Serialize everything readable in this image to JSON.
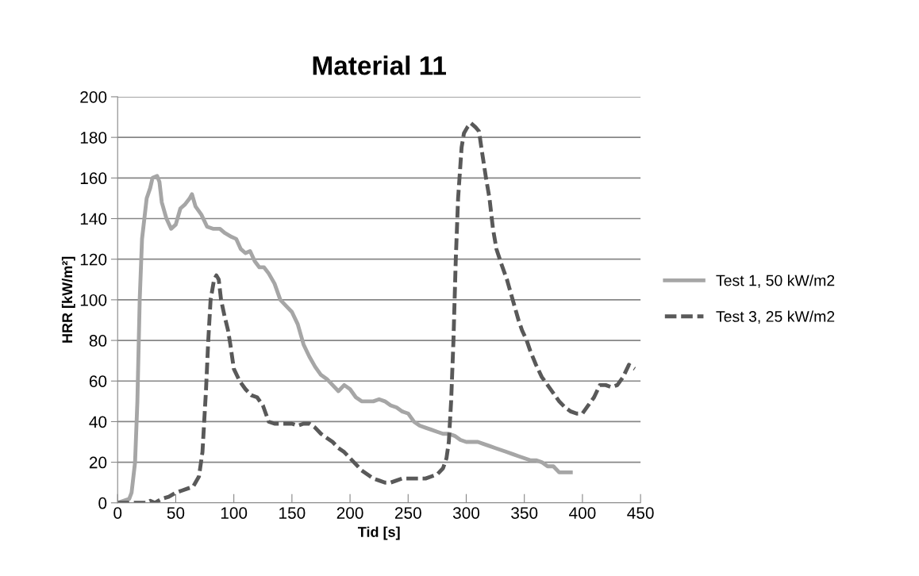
{
  "chart_data": {
    "type": "line",
    "title": "Material 11",
    "xlabel": "Tid [s]",
    "ylabel": "HRR [kW/m²]",
    "xlim": [
      0,
      450
    ],
    "xticks": [
      0,
      50,
      100,
      150,
      200,
      250,
      300,
      350,
      400,
      450
    ],
    "ylim": [
      0,
      200
    ],
    "yticks": [
      0,
      20,
      40,
      60,
      80,
      100,
      120,
      140,
      160,
      180,
      200
    ],
    "grid": "y",
    "legend": "right",
    "marker": "none",
    "series": [
      {
        "name": "Test 1, 50 kW/m2",
        "color": "#a6a6a6",
        "line_style": "solid",
        "x": [
          0,
          5,
          10,
          12,
          15,
          17,
          19,
          21,
          25,
          28,
          30,
          34,
          36,
          38,
          42,
          46,
          50,
          54,
          58,
          62,
          64,
          67,
          72,
          77,
          82,
          88,
          92,
          98,
          102,
          106,
          110,
          114,
          118,
          122,
          126,
          130,
          135,
          140,
          145,
          150,
          155,
          160,
          165,
          170,
          175,
          180,
          185,
          190,
          195,
          200,
          205,
          210,
          215,
          220,
          225,
          230,
          235,
          240,
          245,
          250,
          255,
          260,
          265,
          270,
          275,
          280,
          285,
          290,
          295,
          300,
          305,
          310,
          315,
          320,
          325,
          330,
          335,
          340,
          345,
          350,
          355,
          360,
          365,
          370,
          375,
          380,
          385,
          390
        ],
        "values": [
          0,
          1,
          2,
          5,
          20,
          50,
          100,
          130,
          150,
          155,
          160,
          161,
          158,
          148,
          140,
          135,
          137,
          145,
          147,
          150,
          152,
          146,
          142,
          136,
          135,
          135,
          133,
          131,
          130,
          125,
          123,
          124,
          119,
          116,
          116,
          113,
          108,
          100,
          97,
          94,
          88,
          78,
          72,
          67,
          63,
          61,
          58,
          55,
          58,
          56,
          52,
          50,
          50,
          50,
          51,
          50,
          48,
          47,
          45,
          44,
          40,
          38,
          37,
          36,
          35,
          34,
          34,
          33,
          31,
          30,
          30,
          30,
          29,
          28,
          27,
          26,
          25,
          24,
          23,
          22,
          21,
          21,
          20,
          18,
          18,
          15,
          15,
          15
        ]
      },
      {
        "name": "Test 3, 25 kW/m2",
        "color": "#595959",
        "line_style": "dashed",
        "x": [
          0,
          10,
          20,
          25,
          28,
          32,
          38,
          44,
          50,
          55,
          60,
          65,
          70,
          73,
          76,
          78,
          80,
          83,
          85,
          87,
          89,
          92,
          95,
          97,
          100,
          105,
          110,
          115,
          120,
          125,
          130,
          135,
          140,
          145,
          150,
          155,
          160,
          165,
          170,
          175,
          180,
          185,
          190,
          195,
          200,
          205,
          210,
          215,
          220,
          225,
          230,
          235,
          240,
          245,
          250,
          255,
          260,
          265,
          270,
          275,
          280,
          283,
          285,
          287,
          289,
          291,
          293,
          296,
          298,
          301,
          304,
          308,
          311,
          313,
          317,
          320,
          323,
          326,
          330,
          335,
          340,
          345,
          348,
          352,
          355,
          360,
          365,
          370,
          375,
          380,
          385,
          390,
          395,
          400,
          405,
          410,
          415,
          420,
          425,
          430,
          435,
          440,
          445
        ],
        "values": [
          0,
          0,
          0,
          0,
          1,
          0,
          2,
          3,
          5,
          6,
          7,
          8,
          13,
          25,
          55,
          80,
          100,
          110,
          112,
          110,
          100,
          92,
          85,
          78,
          66,
          60,
          56,
          53,
          52,
          48,
          40,
          39,
          39,
          39,
          39,
          38,
          39,
          39,
          37,
          34,
          32,
          30,
          27,
          25,
          22,
          19,
          16,
          14,
          12,
          11,
          10,
          10,
          11,
          12,
          12,
          12,
          12,
          12,
          13,
          14,
          17,
          22,
          30,
          50,
          80,
          120,
          150,
          175,
          182,
          185,
          187,
          185,
          183,
          175,
          160,
          150,
          135,
          125,
          118,
          110,
          100,
          90,
          85,
          80,
          75,
          68,
          62,
          58,
          54,
          50,
          47,
          45,
          44,
          44,
          48,
          52,
          58,
          58,
          57,
          58,
          62,
          68,
          66
        ]
      }
    ]
  }
}
